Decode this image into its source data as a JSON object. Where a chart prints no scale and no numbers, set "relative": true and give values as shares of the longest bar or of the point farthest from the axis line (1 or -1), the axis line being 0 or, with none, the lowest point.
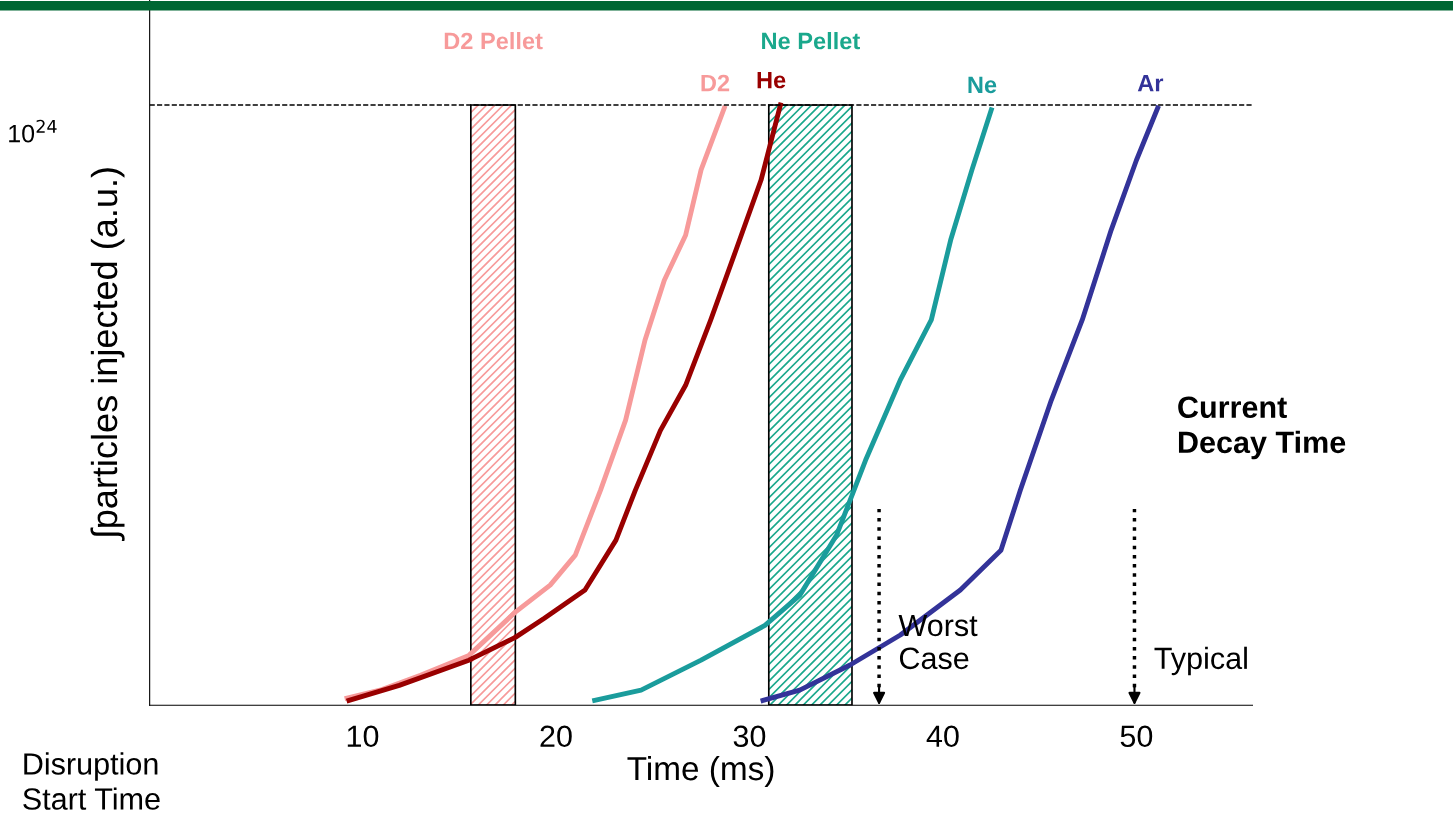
{
  "chart_data": {
    "type": "line",
    "relative": true,
    "xlabel": "Time (ms)",
    "ylabel": "∫particles injected (a.u.)",
    "xlim": [
      -1,
      56
    ],
    "xticks": [
      10,
      20,
      30,
      40,
      50
    ],
    "grid": false,
    "marker": "none",
    "line_style": "solid",
    "series": [
      {
        "name": "D2",
        "color": "#f79a9a",
        "x": [
          9.2,
          10.9,
          13.0,
          15.5,
          17.9,
          19.7,
          21.0,
          22.3,
          23.6,
          24.6,
          25.6,
          26.7,
          27.5,
          28.7
        ],
        "values": [
          0.012,
          0.025,
          0.05,
          0.083,
          0.155,
          0.2,
          0.25,
          0.358,
          0.475,
          0.608,
          0.708,
          0.783,
          0.892,
          0.995
        ]
      },
      {
        "name": "He",
        "color": "#990000",
        "x": [
          9.3,
          11.9,
          15.5,
          17.9,
          19.4,
          21.5,
          23.1,
          24.1,
          25.4,
          26.7,
          28.0,
          29.3,
          30.6,
          31.6
        ],
        "values": [
          0.008,
          0.033,
          0.075,
          0.113,
          0.145,
          0.192,
          0.275,
          0.358,
          0.458,
          0.533,
          0.642,
          0.758,
          0.875,
          1.0
        ]
      },
      {
        "name": "Ne",
        "color": "#1a9c9c",
        "x": [
          22.0,
          24.4,
          27.5,
          30.8,
          32.6,
          34.5,
          36.0,
          37.8,
          39.4,
          40.4,
          41.5,
          42.5
        ],
        "values": [
          0.008,
          0.025,
          0.075,
          0.133,
          0.183,
          0.283,
          0.408,
          0.542,
          0.642,
          0.775,
          0.892,
          0.992
        ]
      },
      {
        "name": "Ar",
        "color": "#333399",
        "x": [
          30.7,
          32.6,
          35.2,
          37.8,
          40.9,
          43.0,
          44.0,
          45.6,
          47.2,
          48.7,
          50.0,
          51.1
        ],
        "values": [
          0.008,
          0.025,
          0.067,
          0.117,
          0.192,
          0.258,
          0.358,
          0.508,
          0.642,
          0.792,
          0.908,
          0.995
        ]
      }
    ],
    "ref_lines": [
      {
        "axis": "y",
        "value": 1,
        "color": "#000000",
        "line_style": "dashed"
      },
      {
        "axis": "x",
        "value": 36.7,
        "label": "Worst\nCase",
        "color": "#000000",
        "line_style": "dotted"
      },
      {
        "axis": "x",
        "value": 49.9,
        "label": "Typical",
        "color": "#000000",
        "line_style": "dotted"
      }
    ],
    "bands": [
      {
        "axis": "x",
        "from": 15.6,
        "to": 17.9,
        "label": "D2 Pellet",
        "color": "#f79a9a"
      },
      {
        "axis": "x",
        "from": 31.0,
        "to": 35.3,
        "label": "Ne Pellet",
        "color": "#1aa88c"
      }
    ],
    "annotations": [
      "Current\nDecay Time",
      "Disruption\nStart Time",
      "10$^{24}$"
    ]
  }
}
